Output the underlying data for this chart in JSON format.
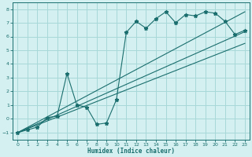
{
  "xlabel": "Humidex (Indice chaleur)",
  "bg_color": "#d5f0f0",
  "grid_color": "#a8d8d8",
  "line_color": "#1a6e6e",
  "xlim": [
    -0.5,
    23.5
  ],
  "ylim": [
    -1.5,
    8.5
  ],
  "xticks": [
    0,
    1,
    2,
    3,
    4,
    5,
    6,
    7,
    8,
    9,
    10,
    11,
    12,
    13,
    14,
    15,
    16,
    17,
    18,
    19,
    20,
    21,
    22,
    23
  ],
  "yticks": [
    -1,
    0,
    1,
    2,
    3,
    4,
    5,
    6,
    7,
    8
  ],
  "main_line_x": [
    0,
    1,
    2,
    3,
    4,
    5,
    6,
    7,
    8,
    9,
    10,
    11,
    12,
    13,
    14,
    15,
    16,
    17,
    18,
    19,
    20,
    21,
    22,
    23
  ],
  "main_line_y": [
    -1.0,
    -0.8,
    -0.6,
    0.1,
    0.2,
    3.3,
    1.0,
    0.85,
    -0.4,
    -0.3,
    1.4,
    6.3,
    7.1,
    6.6,
    7.3,
    7.8,
    7.0,
    7.6,
    7.5,
    7.8,
    7.7,
    7.1,
    6.15,
    6.45
  ],
  "reg_line1_x": [
    0,
    23
  ],
  "reg_line1_y": [
    -1.0,
    6.35
  ],
  "reg_line2_x": [
    0,
    23
  ],
  "reg_line2_y": [
    -1.0,
    5.5
  ],
  "reg_line3_x": [
    0,
    23
  ],
  "reg_line3_y": [
    -1.0,
    7.8
  ]
}
